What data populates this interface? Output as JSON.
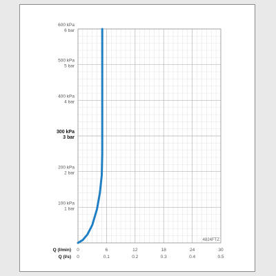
{
  "chart_data": {
    "type": "line",
    "code_label": "4824FTZ",
    "x_axis_primary_label": "Q (l/min)",
    "x_axis_secondary_label": "Q (l/s)",
    "x_ticks_primary": [
      "0",
      "6",
      "12",
      "18",
      "24",
      "30"
    ],
    "x_ticks_secondary": [
      "0",
      "0.1",
      "0.2",
      "0.3",
      "0.4",
      "0.5"
    ],
    "x_tick_values": [
      0,
      6,
      12,
      18,
      24,
      30
    ],
    "xlim": [
      0,
      30
    ],
    "ylim": [
      0,
      600
    ],
    "y_ticks": [
      {
        "value": 100,
        "kpa": "100 kPa",
        "bar": "1 bar",
        "bold": false
      },
      {
        "value": 200,
        "kpa": "200 kPa",
        "bar": "2 bar",
        "bold": false
      },
      {
        "value": 300,
        "kpa": "300 kPa",
        "bar": "3 bar",
        "bold": true
      },
      {
        "value": 400,
        "kpa": "400 kPa",
        "bar": "4 bar",
        "bold": false
      },
      {
        "value": 500,
        "kpa": "500 kPa",
        "bar": "5 bar",
        "bold": false
      },
      {
        "value": 600,
        "kpa": "600 kPa",
        "bar": "6 bar",
        "bold": false
      }
    ],
    "grid": true,
    "series": [
      {
        "color": "#1f7fc4",
        "x": [
          0,
          1,
          2,
          3,
          4,
          4.6,
          5.0,
          5.1,
          5.1,
          5.1,
          5.1
        ],
        "y": [
          0,
          8,
          24,
          50,
          95,
          140,
          190,
          250,
          350,
          450,
          600
        ]
      }
    ]
  }
}
